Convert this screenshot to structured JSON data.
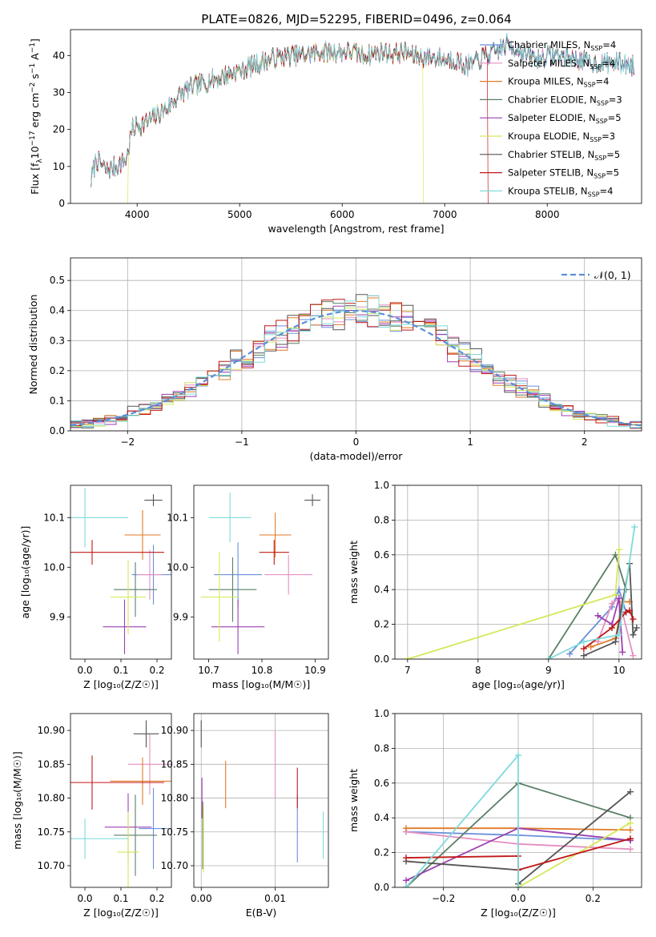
{
  "title": "PLATE=0826, MJD=52295, FIBERID=0496, z=0.064",
  "colors": {
    "Chabrier MILES": "#6b8fdc",
    "Salpeter MILES": "#e58fc0",
    "Kroupa MILES": "#e07a28",
    "Chabrier ELODIE": "#5a7f66",
    "Salpeter ELODIE": "#9b3fb0",
    "Kroupa ELODIE": "#d5e85a",
    "Chabrier STELIB": "#555555",
    "Salpeter STELIB": "#c01818",
    "Kroupa STELIB": "#80dada"
  },
  "chart_data": [
    {
      "id": "spectrum",
      "type": "line",
      "xlabel": "wavelength [Angstrom, rest frame]",
      "ylabel": "Flux [f",
      "ylabel_sub": "λ",
      "ylabel_rest": "10",
      "ylabel_exp1": "−17",
      "ylabel_mid": " erg cm",
      "ylabel_exp2": "−2",
      "ylabel_mid2": " s",
      "ylabel_exp3": "−1",
      "ylabel_mid3": " A",
      "ylabel_exp4": "−1",
      "ylabel_end": "]",
      "xlim": [
        3350,
        8920
      ],
      "ylim": [
        0,
        47
      ],
      "xticks": [
        4000,
        5000,
        6000,
        7000,
        8000
      ],
      "yticks": [
        0,
        10,
        20,
        30,
        40
      ],
      "anchors": [
        [
          3550,
          6
        ],
        [
          3600,
          12
        ],
        [
          3700,
          9
        ],
        [
          3800,
          10
        ],
        [
          3900,
          12
        ],
        [
          3950,
          20
        ],
        [
          4000,
          21
        ],
        [
          4100,
          22
        ],
        [
          4200,
          24
        ],
        [
          4300,
          26
        ],
        [
          4400,
          29
        ],
        [
          4500,
          31
        ],
        [
          4600,
          32
        ],
        [
          4700,
          33
        ],
        [
          4800,
          34
        ],
        [
          4900,
          35
        ],
        [
          5000,
          36
        ],
        [
          5100,
          37
        ],
        [
          5200,
          38
        ],
        [
          5300,
          39
        ],
        [
          5400,
          39.5
        ],
        [
          5500,
          40
        ],
        [
          5600,
          40
        ],
        [
          5700,
          40.5
        ],
        [
          5800,
          41
        ],
        [
          5900,
          41
        ],
        [
          6000,
          41
        ],
        [
          6100,
          41
        ],
        [
          6200,
          40
        ],
        [
          6300,
          40.5
        ],
        [
          6400,
          41
        ],
        [
          6500,
          40.5
        ],
        [
          6600,
          41
        ],
        [
          6700,
          40
        ],
        [
          6800,
          39.5
        ],
        [
          6900,
          39.5
        ],
        [
          7000,
          39
        ],
        [
          7100,
          39
        ],
        [
          7200,
          37
        ],
        [
          7300,
          38
        ],
        [
          7400,
          40
        ],
        [
          7500,
          41
        ],
        [
          7600,
          43
        ],
        [
          7700,
          42
        ],
        [
          7800,
          40
        ],
        [
          7900,
          39
        ],
        [
          8000,
          40
        ],
        [
          8100,
          40
        ],
        [
          8200,
          39.5
        ],
        [
          8300,
          39
        ],
        [
          8400,
          38
        ],
        [
          8500,
          38
        ],
        [
          8600,
          38
        ],
        [
          8700,
          38
        ],
        [
          8800,
          37.5
        ],
        [
          8850,
          37
        ]
      ],
      "xmax_data": 8850,
      "series": [
        {
          "name": "Chabrier MILES",
          "nssp": "4"
        },
        {
          "name": "Salpeter MILES",
          "nssp": "4"
        },
        {
          "name": "Kroupa MILES",
          "nssp": "4"
        },
        {
          "name": "Chabrier ELODIE",
          "nssp": "3"
        },
        {
          "name": "Salpeter ELODIE",
          "nssp": "5"
        },
        {
          "name": "Kroupa ELODIE",
          "nssp": "3"
        },
        {
          "name": "Chabrier STELIB",
          "nssp": "5"
        },
        {
          "name": "Salpeter STELIB",
          "nssp": "5"
        },
        {
          "name": "Kroupa STELIB",
          "nssp": "4"
        }
      ],
      "nssp_label": "N",
      "nssp_sub": "SSP",
      "drops": [
        {
          "series": "Kroupa ELODIE",
          "x": 3910,
          "range": [
            3350,
            3910
          ]
        },
        {
          "series": "Kroupa ELODIE",
          "x": 6790,
          "range": [
            6790,
            8920
          ]
        },
        {
          "series": "Salpeter STELIB",
          "x": 7420,
          "range": [
            7420,
            8920
          ]
        }
      ],
      "legend_position": "upper right"
    },
    {
      "id": "residuals",
      "type": "step",
      "xlabel": "(data-model)/error",
      "ylabel": "Normed distribution",
      "xlim": [
        -2.5,
        2.5
      ],
      "ylim": [
        0,
        0.575
      ],
      "xticks": [
        -2,
        -1,
        0,
        1,
        2
      ],
      "yticks": [
        0.0,
        0.1,
        0.2,
        0.3,
        0.4,
        0.5
      ],
      "bin_width": 0.1,
      "gaussian": {
        "label": "𝒩(0, 1)",
        "mean": 0,
        "sigma": 1
      },
      "grid": true,
      "legend_position": "upper right"
    },
    {
      "id": "age-vs-Z",
      "type": "errorbar",
      "xlabel": "Z [log₁₀(Z/Z☉)]",
      "ylabel": "age  [log₁₀(age/yr)]",
      "xlim": [
        -0.04,
        0.24
      ],
      "ylim": [
        9.815,
        10.165
      ],
      "xticks": [
        0.0,
        0.1,
        0.2
      ],
      "yticks": [
        9.9,
        10.0,
        10.1
      ],
      "points": [
        {
          "series": "Chabrier MILES",
          "x": 0.19,
          "y": 9.985,
          "xerr": 0.06,
          "yerr": 0.06
        },
        {
          "series": "Salpeter MILES",
          "x": 0.18,
          "y": 9.985,
          "xerr": 0.035,
          "yerr": 0.05
        },
        {
          "series": "Kroupa MILES",
          "x": 0.16,
          "y": 10.065,
          "xerr": 0.05,
          "yerr": 0.05
        },
        {
          "series": "Chabrier ELODIE",
          "x": 0.14,
          "y": 9.955,
          "xerr": 0.06,
          "yerr": 0.055
        },
        {
          "series": "Salpeter ELODIE",
          "x": 0.11,
          "y": 9.88,
          "xerr": 0.06,
          "yerr": 0.055
        },
        {
          "series": "Kroupa ELODIE",
          "x": 0.12,
          "y": 9.94,
          "xerr": 0.05,
          "yerr": 0.075
        },
        {
          "series": "Chabrier STELIB",
          "x": 0.19,
          "y": 10.135,
          "xerr": 0.025,
          "yerr": 0.012
        },
        {
          "series": "Salpeter STELIB",
          "x": 0.02,
          "y": 10.03,
          "xerr": 0.2,
          "yerr": 0.025
        },
        {
          "series": "Kroupa STELIB",
          "x": 0.0,
          "y": 10.1,
          "xerr": 0.12,
          "yerr": 0.06
        }
      ]
    },
    {
      "id": "age-vs-mass",
      "type": "errorbar",
      "xlabel": "mass [log₁₀(M/M☉)]",
      "ylabel": "",
      "xlim": [
        10.672,
        10.925
      ],
      "ylim": [
        9.815,
        10.165
      ],
      "xticks": [
        10.7,
        10.8,
        10.9
      ],
      "yticks": [
        9.9,
        10.0,
        10.1
      ],
      "points": [
        {
          "series": "Chabrier MILES",
          "x": 10.755,
          "y": 9.985,
          "xerr": 0.045,
          "yerr": 0.065
        },
        {
          "series": "Salpeter MILES",
          "x": 10.85,
          "y": 9.985,
          "xerr": 0.045,
          "yerr": 0.04
        },
        {
          "series": "Kroupa MILES",
          "x": 10.825,
          "y": 10.065,
          "xerr": 0.03,
          "yerr": 0.045
        },
        {
          "series": "Chabrier ELODIE",
          "x": 10.745,
          "y": 9.955,
          "xerr": 0.045,
          "yerr": 0.065
        },
        {
          "series": "Salpeter ELODIE",
          "x": 10.755,
          "y": 9.88,
          "xerr": 0.05,
          "yerr": 0.055
        },
        {
          "series": "Kroupa ELODIE",
          "x": 10.72,
          "y": 9.94,
          "xerr": 0.035,
          "yerr": 0.09
        },
        {
          "series": "Chabrier STELIB",
          "x": 10.895,
          "y": 10.135,
          "xerr": 0.015,
          "yerr": 0.012
        },
        {
          "series": "Salpeter STELIB",
          "x": 10.823,
          "y": 10.03,
          "xerr": 0.028,
          "yerr": 0.025
        },
        {
          "series": "Kroupa STELIB",
          "x": 10.74,
          "y": 10.1,
          "xerr": 0.04,
          "yerr": 0.05
        }
      ]
    },
    {
      "id": "massweight-vs-age",
      "type": "line",
      "xlabel": "age  [log₁₀(age/yr)]",
      "ylabel": "mass weight",
      "xlim": [
        6.82,
        10.32
      ],
      "ylim": [
        0,
        1
      ],
      "xticks": [
        7,
        8,
        9,
        10
      ],
      "yticks": [
        0.0,
        0.2,
        0.4,
        0.6,
        0.8,
        1.0
      ],
      "grid": true,
      "series": [
        {
          "name": "Chabrier MILES",
          "x": [
            9.3,
            9.9,
            10.0,
            10.1
          ],
          "y": [
            0.03,
            0.3,
            0.4,
            0.27
          ]
        },
        {
          "name": "Salpeter MILES",
          "x": [
            9.7,
            9.9,
            10.0,
            10.2
          ],
          "y": [
            0.1,
            0.32,
            0.35,
            0.02
          ]
        },
        {
          "name": "Kroupa MILES",
          "x": [
            9.6,
            9.95,
            10.05,
            10.15
          ],
          "y": [
            0.07,
            0.12,
            0.33,
            0.33
          ]
        },
        {
          "name": "Chabrier ELODIE",
          "x": [
            9.0,
            9.95,
            10.1
          ],
          "y": [
            0.0,
            0.6,
            0.4
          ]
        },
        {
          "name": "Salpeter ELODIE",
          "x": [
            9.7,
            9.9,
            10.0,
            10.05
          ],
          "y": [
            0.25,
            0.2,
            0.35,
            0.04
          ]
        },
        {
          "name": "Kroupa ELODIE",
          "x": [
            7.0,
            9.95,
            10.0
          ],
          "y": [
            0.0,
            0.37,
            0.63
          ]
        },
        {
          "name": "Chabrier STELIB",
          "x": [
            9.5,
            9.95,
            10.15,
            10.2,
            10.25
          ],
          "y": [
            0.02,
            0.1,
            0.55,
            0.14,
            0.18
          ]
        },
        {
          "name": "Salpeter STELIB",
          "x": [
            9.5,
            9.9,
            10.1,
            10.15,
            10.2
          ],
          "y": [
            0.06,
            0.18,
            0.27,
            0.28,
            0.23
          ]
        },
        {
          "name": "Kroupa STELIB",
          "x": [
            9.0,
            9.5,
            10.0,
            10.22
          ],
          "y": [
            0.0,
            0.1,
            0.14,
            0.76
          ]
        }
      ]
    },
    {
      "id": "mass-vs-Z",
      "type": "errorbar",
      "xlabel": "Z [log₁₀(Z/Z☉)]",
      "ylabel": "mass [log₁₀(M/M☉)]",
      "xlim": [
        -0.04,
        0.24
      ],
      "ylim": [
        10.668,
        10.925
      ],
      "xticks": [
        0.0,
        0.1,
        0.2
      ],
      "yticks": [
        10.7,
        10.75,
        10.8,
        10.85,
        10.9
      ],
      "points": [
        {
          "series": "Chabrier MILES",
          "x": 0.19,
          "y": 10.755,
          "xerr": 0.04,
          "yerr": 0.06
        },
        {
          "series": "Salpeter MILES",
          "x": 0.18,
          "y": 10.85,
          "xerr": 0.06,
          "yerr": 0.045
        },
        {
          "series": "Kroupa MILES",
          "x": 0.16,
          "y": 10.825,
          "xerr": 0.09,
          "yerr": 0.035
        },
        {
          "series": "Chabrier ELODIE",
          "x": 0.14,
          "y": 10.745,
          "xerr": 0.06,
          "yerr": 0.06
        },
        {
          "series": "Salpeter ELODIE",
          "x": 0.12,
          "y": 10.757,
          "xerr": 0.065,
          "yerr": 0.05
        },
        {
          "series": "Kroupa ELODIE",
          "x": 0.12,
          "y": 10.72,
          "xerr": 0.03,
          "yerr": 0.06
        },
        {
          "series": "Chabrier STELIB",
          "x": 0.17,
          "y": 10.895,
          "xerr": 0.035,
          "yerr": 0.02
        },
        {
          "series": "Salpeter STELIB",
          "x": 0.02,
          "y": 10.823,
          "xerr": 0.2,
          "yerr": 0.04
        },
        {
          "series": "Kroupa STELIB",
          "x": 0.0,
          "y": 10.74,
          "xerr": 0.12,
          "yerr": 0.03
        }
      ]
    },
    {
      "id": "mass-vs-ebv",
      "type": "errorbar",
      "xlabel": "E(B-V)",
      "ylabel": "",
      "xlim": [
        -0.001,
        0.0172
      ],
      "ylim": [
        10.668,
        10.925
      ],
      "xticks": [
        0.0,
        0.01
      ],
      "yticks": [
        10.7,
        10.75,
        10.8,
        10.85,
        10.9
      ],
      "grid": true,
      "points": [
        {
          "series": "Chabrier MILES",
          "x": 0.013,
          "y": 10.755,
          "xerr": 0,
          "yerr": 0.05
        },
        {
          "series": "Salpeter MILES",
          "x": 0.01,
          "y": 10.85,
          "xerr": 0,
          "yerr": 0.05
        },
        {
          "series": "Kroupa MILES",
          "x": 0.0033,
          "y": 10.82,
          "xerr": 0,
          "yerr": 0.035
        },
        {
          "series": "Chabrier ELODIE",
          "x": 0.0002,
          "y": 10.745,
          "xerr": 0,
          "yerr": 0.05
        },
        {
          "series": "Salpeter ELODIE",
          "x": 0.0001,
          "y": 10.8,
          "xerr": 0,
          "yerr": 0.03
        },
        {
          "series": "Kroupa ELODIE",
          "x": 0.0003,
          "y": 10.74,
          "xerr": 0,
          "yerr": 0.05
        },
        {
          "series": "Chabrier STELIB",
          "x": 0.0,
          "y": 10.895,
          "xerr": 0,
          "yerr": 0.02
        },
        {
          "series": "Salpeter STELIB",
          "x": 0.013,
          "y": 10.815,
          "xerr": 0,
          "yerr": 0.03
        },
        {
          "series": "Kroupa STELIB",
          "x": 0.0165,
          "y": 10.745,
          "xerr": 0,
          "yerr": 0.035
        }
      ]
    },
    {
      "id": "massweight-vs-Z",
      "type": "line",
      "xlabel": "Z [log₁₀(Z/Z☉)]",
      "ylabel": "mass weight",
      "xlim": [
        -0.33,
        0.33
      ],
      "ylim": [
        0,
        1
      ],
      "xticks": [
        -0.2,
        0.0,
        0.2
      ],
      "yticks": [
        0.0,
        0.2,
        0.4,
        0.6,
        0.8,
        1.0
      ],
      "grid": true,
      "series": [
        {
          "name": "Chabrier MILES",
          "x": [
            -0.3,
            0.0,
            0.3
          ],
          "y": [
            0.32,
            0.3,
            0.27
          ]
        },
        {
          "name": "Salpeter MILES",
          "x": [
            -0.3,
            0.0,
            0.3
          ],
          "y": [
            0.32,
            0.25,
            0.22
          ]
        },
        {
          "name": "Kroupa MILES",
          "x": [
            -0.3,
            0.0,
            0.3
          ],
          "y": [
            0.34,
            0.34,
            0.33
          ]
        },
        {
          "name": "Chabrier ELODIE",
          "x": [
            -0.3,
            0.0,
            0.3
          ],
          "y": [
            0.0,
            0.6,
            0.4
          ]
        },
        {
          "name": "Salpeter ELODIE",
          "x": [
            -0.3,
            0.0,
            0.3
          ],
          "y": [
            0.04,
            0.34,
            0.27
          ]
        },
        {
          "name": "Kroupa ELODIE",
          "x": [
            0.0,
            0.3
          ],
          "y": [
            0.0,
            0.37
          ]
        },
        {
          "name": "Chabrier STELIB",
          "x": [
            -0.3,
            0.0,
            0.0,
            0.3
          ],
          "y": [
            0.15,
            0.1,
            0.02,
            0.55
          ]
        },
        {
          "name": "Salpeter STELIB",
          "x": [
            -0.3,
            0.0,
            0.0,
            0.3
          ],
          "y": [
            0.17,
            0.18,
            0.1,
            0.28
          ]
        },
        {
          "name": "Kroupa STELIB",
          "x": [
            -0.3,
            0.0,
            0.0
          ],
          "y": [
            0.0,
            0.76,
            0.0
          ]
        }
      ]
    }
  ]
}
